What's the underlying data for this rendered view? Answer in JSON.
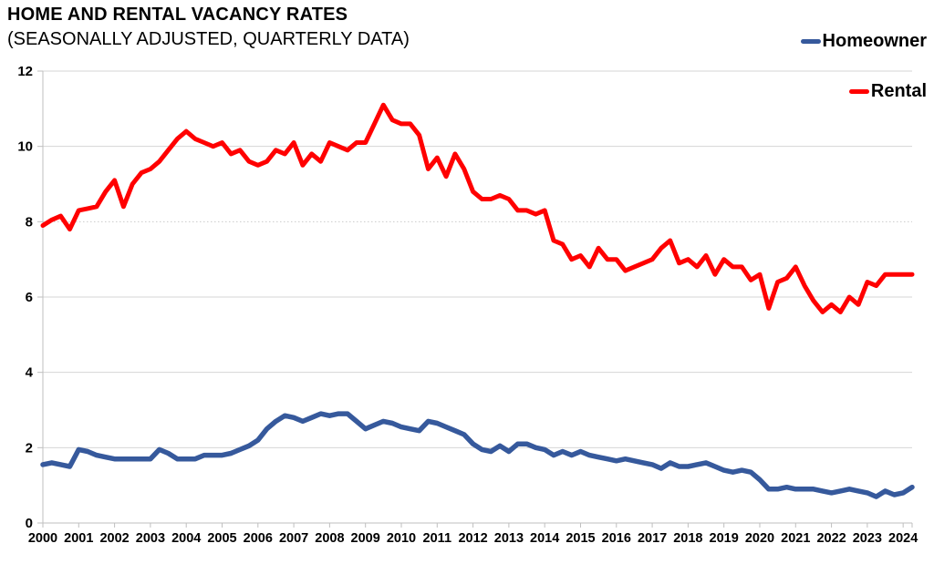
{
  "header": {
    "title": "HOME AND RENTAL VACANCY RATES",
    "subtitle": "(SEASONALLY ADJUSTED, QUARTERLY DATA)"
  },
  "legend": {
    "items": [
      {
        "label": "Homeowner",
        "color": "#36599C"
      },
      {
        "label": "Rental",
        "color": "#FF0000"
      }
    ],
    "position": "top-right"
  },
  "chart_data": {
    "type": "line",
    "title": "HOME AND RENTAL VACANCY RATES",
    "subtitle": "(SEASONALLY ADJUSTED, QUARTERLY DATA)",
    "x_unit": "quarterly",
    "x_start": "2000Q1",
    "x_end": "2024Q2",
    "x_tick_labels": [
      "2000",
      "2001",
      "2002",
      "2003",
      "2004",
      "2005",
      "2006",
      "2007",
      "2008",
      "2009",
      "2010",
      "2011",
      "2012",
      "2013",
      "2014",
      "2015",
      "2016",
      "2017",
      "2018",
      "2019",
      "2020",
      "2021",
      "2022",
      "2023",
      "2024"
    ],
    "y_ticks": [
      0,
      2,
      4,
      6,
      8,
      10,
      12
    ],
    "ylim": [
      0,
      12
    ],
    "grid": "horizontal",
    "dotted_gridline_at": 8,
    "axis_color": "#BFBFBF",
    "grid_color": "#D6D6D6",
    "legend_position": "top-right",
    "series": [
      {
        "name": "Homeowner",
        "color": "#36599C",
        "stroke_width": 5.5,
        "values": [
          1.55,
          1.6,
          1.55,
          1.5,
          1.95,
          1.9,
          1.8,
          1.75,
          1.7,
          1.7,
          1.7,
          1.7,
          1.7,
          1.95,
          1.85,
          1.7,
          1.7,
          1.7,
          1.8,
          1.8,
          1.8,
          1.85,
          1.95,
          2.05,
          2.2,
          2.5,
          2.7,
          2.85,
          2.8,
          2.7,
          2.8,
          2.9,
          2.85,
          2.9,
          2.9,
          2.7,
          2.5,
          2.6,
          2.7,
          2.65,
          2.55,
          2.5,
          2.45,
          2.7,
          2.65,
          2.55,
          2.45,
          2.35,
          2.1,
          1.95,
          1.9,
          2.05,
          1.9,
          2.1,
          2.1,
          2.0,
          1.95,
          1.8,
          1.9,
          1.8,
          1.9,
          1.8,
          1.75,
          1.7,
          1.65,
          1.7,
          1.65,
          1.6,
          1.55,
          1.45,
          1.6,
          1.5,
          1.5,
          1.55,
          1.6,
          1.5,
          1.4,
          1.35,
          1.4,
          1.35,
          1.15,
          0.9,
          0.9,
          0.95,
          0.9,
          0.9,
          0.9,
          0.85,
          0.8,
          0.85,
          0.9,
          0.85,
          0.8,
          0.7,
          0.85,
          0.75,
          0.8,
          0.95
        ]
      },
      {
        "name": "Rental",
        "color": "#FF0000",
        "stroke_width": 5,
        "values": [
          7.9,
          8.05,
          8.15,
          7.8,
          8.3,
          8.35,
          8.4,
          8.8,
          9.1,
          8.4,
          9.0,
          9.3,
          9.4,
          9.6,
          9.9,
          10.2,
          10.4,
          10.2,
          10.1,
          10.0,
          10.1,
          9.8,
          9.9,
          9.6,
          9.5,
          9.6,
          9.9,
          9.8,
          10.1,
          9.5,
          9.8,
          9.6,
          10.1,
          10.0,
          9.9,
          10.1,
          10.1,
          10.6,
          11.1,
          10.7,
          10.6,
          10.6,
          10.3,
          9.4,
          9.7,
          9.2,
          9.8,
          9.4,
          8.8,
          8.6,
          8.6,
          8.7,
          8.6,
          8.3,
          8.3,
          8.2,
          8.3,
          7.5,
          7.4,
          7.0,
          7.1,
          6.8,
          7.3,
          7.0,
          7.0,
          6.7,
          6.8,
          6.9,
          7.0,
          7.3,
          7.5,
          6.9,
          7.0,
          6.8,
          7.1,
          6.6,
          7.0,
          6.8,
          6.8,
          6.45,
          6.6,
          5.7,
          6.4,
          6.5,
          6.8,
          6.3,
          5.9,
          5.6,
          5.8,
          5.6,
          6.0,
          5.8,
          6.4,
          6.3,
          6.6,
          6.6,
          6.6,
          6.6
        ]
      }
    ]
  }
}
